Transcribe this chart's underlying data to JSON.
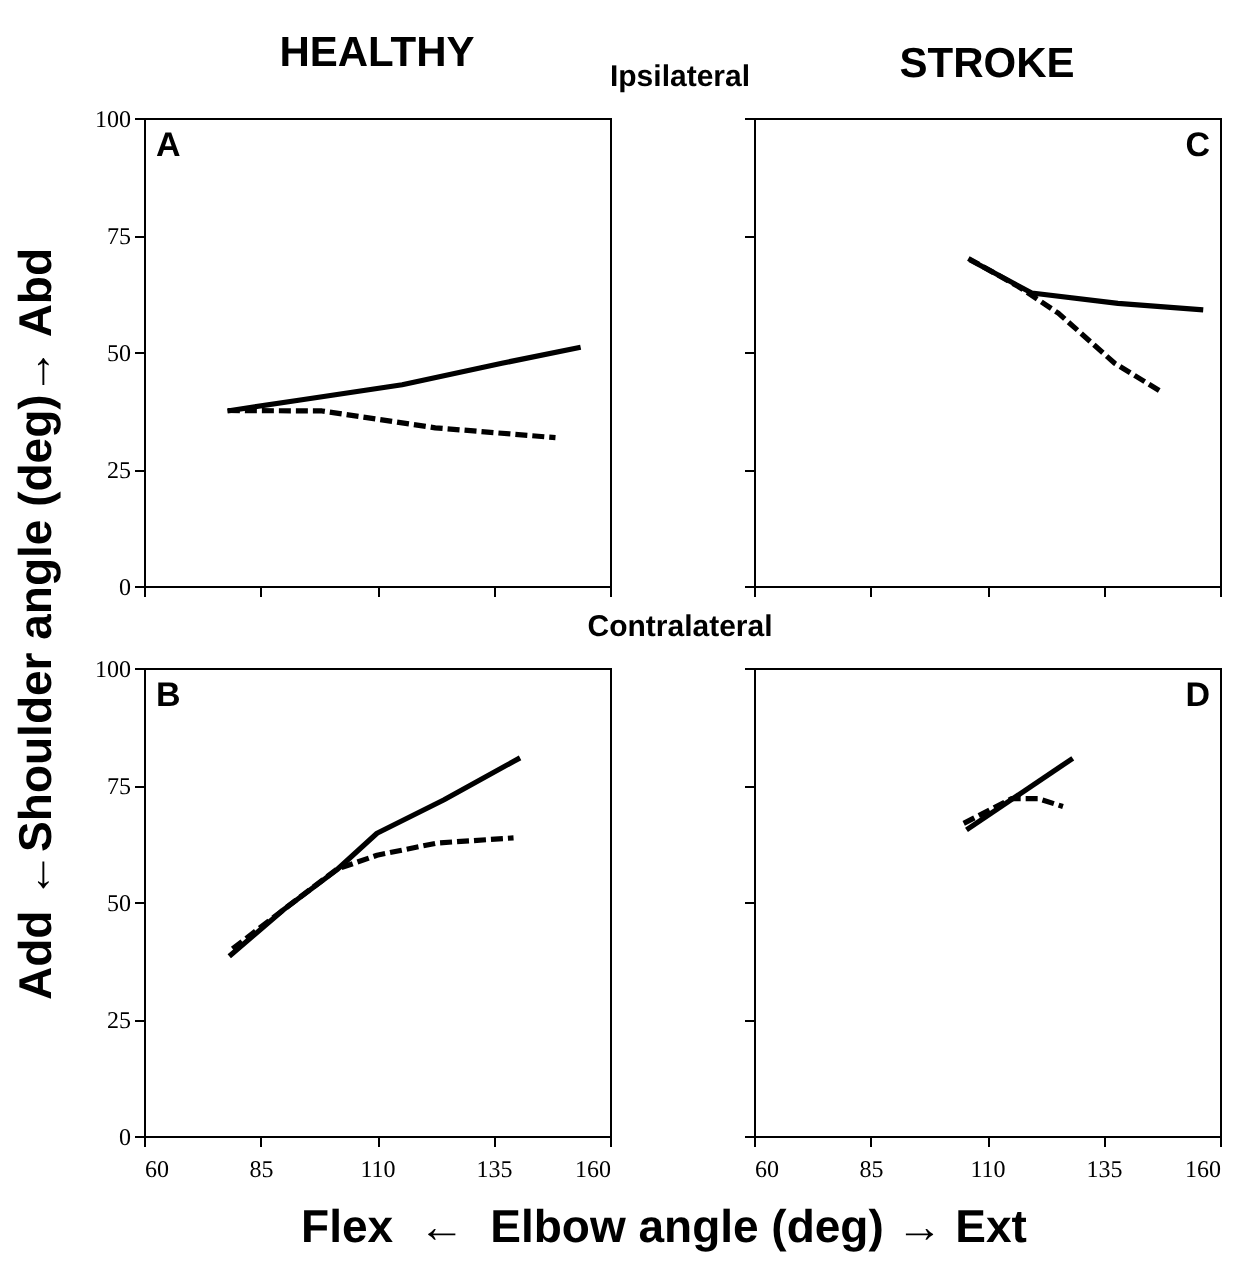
{
  "chart_data": [
    {
      "type": "line",
      "title": "HEALTHY",
      "subtitle": "Ipsilateral",
      "annotations": [
        "A"
      ],
      "xlim": [
        60,
        160
      ],
      "xticks": [
        60,
        85,
        110,
        135,
        160
      ],
      "ylim": [
        0,
        100
      ],
      "yticks": [
        0,
        25,
        50,
        75,
        100
      ],
      "tick_labels": "y",
      "grid": false,
      "series": [
        {
          "color": "#000000",
          "line_style": "solid",
          "x": [
            77.9,
            93.9,
            115.4,
            136.8,
            153.7
          ],
          "values": [
            37.4,
            39.8,
            43,
            47.6,
            51
          ]
        },
        {
          "color": "#000000",
          "line_style": "dashed",
          "x": [
            78,
            98.2,
            122.5,
            148.3
          ],
          "values": [
            37.5,
            37.4,
            33.8,
            31.7
          ]
        }
      ]
    },
    {
      "type": "line",
      "subtitle": "Contralateral",
      "annotations": [
        "B"
      ],
      "xlabel": "Flex  ←  Elbow angle (deg) → Ext",
      "ylabel": "Add ←Shoulder angle (deg)→ Abd",
      "xlim": [
        60,
        160
      ],
      "xticks": [
        60,
        85,
        110,
        135,
        160
      ],
      "ylim": [
        0,
        100
      ],
      "yticks": [
        0,
        25,
        50,
        75,
        100
      ],
      "grid": false,
      "series": [
        {
          "color": "#000000",
          "line_style": "solid",
          "x": [
            78.3,
            90,
            101.4,
            110,
            124.3,
            140.7
          ],
          "values": [
            38.4,
            48.4,
            56.9,
            64.7,
            71.8,
            80.8
          ]
        },
        {
          "color": "#000000",
          "line_style": "dashed",
          "x": [
            79,
            90,
            101.4,
            110,
            122.9,
            139.3
          ],
          "values": [
            40,
            48.4,
            57,
            60,
            62.6,
            63.7
          ]
        }
      ]
    },
    {
      "type": "line",
      "title": "STROKE",
      "annotations": [
        "C"
      ],
      "xlim": [
        60,
        160
      ],
      "xticks": [
        60,
        85,
        110,
        135,
        160
      ],
      "ylim": [
        0,
        100
      ],
      "yticks": [
        0,
        25,
        50,
        75,
        100
      ],
      "tick_labels": false,
      "grid": false,
      "series": [
        {
          "color": "#000000",
          "line_style": "solid",
          "x": [
            106.3,
            119.6,
            138.1,
            156.4
          ],
          "values": [
            69.7,
            62.6,
            60.4,
            59
          ]
        },
        {
          "color": "#000000",
          "line_style": "dashed",
          "x": [
            106,
            116.7,
            125.3,
            137.4,
            147.4
          ],
          "values": [
            70,
            64,
            58.3,
            47.6,
            41.5
          ]
        }
      ]
    },
    {
      "type": "line",
      "annotations": [
        "D"
      ],
      "xlim": [
        60,
        160
      ],
      "xticks": [
        60,
        85,
        110,
        135,
        160
      ],
      "ylim": [
        0,
        100
      ],
      "yticks": [
        0,
        25,
        50,
        75,
        100
      ],
      "tick_labels": "x",
      "grid": false,
      "series": [
        {
          "color": "#000000",
          "line_style": "solid",
          "x": [
            105.6,
            128.4
          ],
          "values": [
            65.4,
            80.7
          ]
        },
        {
          "color": "#000000",
          "line_style": "dashed",
          "x": [
            105,
            115.3,
            121,
            126.3
          ],
          "values": [
            66.8,
            72.1,
            72.1,
            70.4
          ]
        }
      ]
    }
  ]
}
